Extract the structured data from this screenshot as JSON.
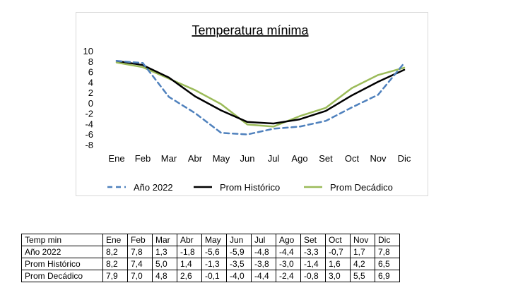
{
  "chart_data": {
    "type": "line",
    "title": "Temperatura mínima",
    "categories": [
      "Ene",
      "Feb",
      "Mar",
      "Abr",
      "May",
      "Jun",
      "Jul",
      "Ago",
      "Set",
      "Oct",
      "Nov",
      "Dic"
    ],
    "ylim": [
      -8,
      10
    ],
    "yticks": [
      10,
      8,
      6,
      4,
      2,
      0,
      -2,
      -4,
      -6,
      -8
    ],
    "grid": false,
    "legend": "bottom",
    "series": [
      {
        "name": "Año 2022",
        "color": "#4f81bd",
        "style": "dashed",
        "values": [
          8.2,
          7.8,
          1.3,
          -1.8,
          -5.6,
          -5.9,
          -4.8,
          -4.4,
          -3.3,
          -0.7,
          1.7,
          7.8
        ]
      },
      {
        "name": "Prom Histórico",
        "color": "#000000",
        "style": "solid",
        "values": [
          8.2,
          7.4,
          5.0,
          1.4,
          -1.3,
          -3.5,
          -3.8,
          -3.0,
          -1.4,
          1.6,
          4.2,
          6.5
        ]
      },
      {
        "name": "Prom Decádico",
        "color": "#9bbb59",
        "style": "solid",
        "values": [
          7.9,
          7.0,
          4.8,
          2.6,
          -0.1,
          -4.0,
          -4.4,
          -2.4,
          -0.8,
          3.0,
          5.5,
          6.9
        ]
      }
    ]
  },
  "table": {
    "header_label": "Temp min",
    "rows": [
      {
        "label": "Año 2022",
        "cells": [
          "8,2",
          "7,8",
          "1,3",
          "-1,8",
          "-5,6",
          "-5,9",
          "-4,8",
          "-4,4",
          "-3,3",
          "-0,7",
          "1,7",
          "7,8"
        ]
      },
      {
        "label": "Prom Histórico",
        "cells": [
          "8,2",
          "7,4",
          "5,0",
          "1,4",
          "-1,3",
          "-3,5",
          "-3,8",
          "-3,0",
          "-1,4",
          "1,6",
          "4,2",
          "6,5"
        ]
      },
      {
        "label": "Prom Decádico",
        "cells": [
          "7,9",
          "7,0",
          "4,8",
          "2,6",
          "-0,1",
          "-4,0",
          "-4,4",
          "-2,4",
          "-0,8",
          "3,0",
          "5,5",
          "6,9"
        ]
      }
    ]
  }
}
